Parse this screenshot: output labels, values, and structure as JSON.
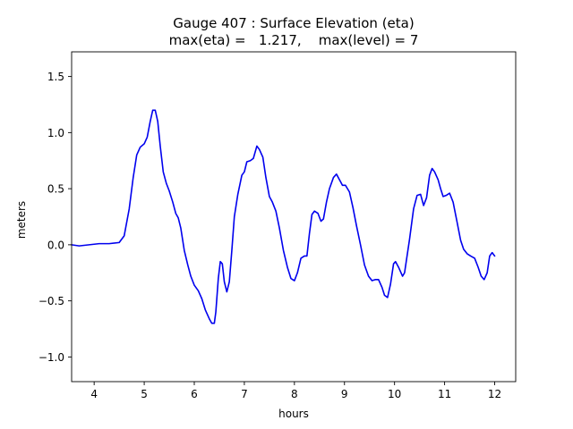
{
  "chart_data": {
    "type": "line",
    "title_line1": "Gauge 407 : Surface Elevation (eta)",
    "title_line2": "max(eta) =   1.217,    max(level) = 7",
    "xlabel": "hours",
    "ylabel": "meters",
    "xlim": [
      3.55,
      12.42
    ],
    "ylim": [
      -1.22,
      1.72
    ],
    "x_ticks": [
      4,
      5,
      6,
      7,
      8,
      9,
      10,
      11,
      12
    ],
    "x_tick_labels": [
      "4",
      "5",
      "6",
      "7",
      "8",
      "9",
      "10",
      "11",
      "12"
    ],
    "y_ticks": [
      -1.0,
      -0.5,
      0.0,
      0.5,
      1.0,
      1.5
    ],
    "y_tick_labels": [
      "−1.0",
      "−0.5",
      "0.0",
      "0.5",
      "1.0",
      "1.5"
    ],
    "grid": false,
    "series": [
      {
        "color": "#0000ee",
        "points": [
          [
            3.55,
            0.0
          ],
          [
            3.7,
            -0.01
          ],
          [
            3.9,
            0.0
          ],
          [
            4.1,
            0.01
          ],
          [
            4.3,
            0.01
          ],
          [
            4.5,
            0.02
          ],
          [
            4.6,
            0.08
          ],
          [
            4.7,
            0.32
          ],
          [
            4.78,
            0.6
          ],
          [
            4.85,
            0.8
          ],
          [
            4.92,
            0.87
          ],
          [
            5.0,
            0.9
          ],
          [
            5.06,
            0.96
          ],
          [
            5.12,
            1.1
          ],
          [
            5.17,
            1.2
          ],
          [
            5.22,
            1.2
          ],
          [
            5.27,
            1.1
          ],
          [
            5.32,
            0.88
          ],
          [
            5.38,
            0.65
          ],
          [
            5.44,
            0.55
          ],
          [
            5.5,
            0.48
          ],
          [
            5.57,
            0.38
          ],
          [
            5.63,
            0.28
          ],
          [
            5.68,
            0.24
          ],
          [
            5.73,
            0.15
          ],
          [
            5.8,
            -0.05
          ],
          [
            5.87,
            -0.18
          ],
          [
            5.93,
            -0.28
          ],
          [
            6.0,
            -0.36
          ],
          [
            6.08,
            -0.41
          ],
          [
            6.15,
            -0.48
          ],
          [
            6.22,
            -0.58
          ],
          [
            6.3,
            -0.66
          ],
          [
            6.35,
            -0.7
          ],
          [
            6.4,
            -0.7
          ],
          [
            6.43,
            -0.6
          ],
          [
            6.48,
            -0.3
          ],
          [
            6.52,
            -0.15
          ],
          [
            6.56,
            -0.17
          ],
          [
            6.6,
            -0.33
          ],
          [
            6.65,
            -0.42
          ],
          [
            6.7,
            -0.33
          ],
          [
            6.75,
            -0.05
          ],
          [
            6.8,
            0.25
          ],
          [
            6.87,
            0.45
          ],
          [
            6.95,
            0.62
          ],
          [
            7.0,
            0.65
          ],
          [
            7.05,
            0.74
          ],
          [
            7.12,
            0.75
          ],
          [
            7.18,
            0.77
          ],
          [
            7.25,
            0.88
          ],
          [
            7.3,
            0.85
          ],
          [
            7.37,
            0.78
          ],
          [
            7.43,
            0.6
          ],
          [
            7.5,
            0.43
          ],
          [
            7.56,
            0.38
          ],
          [
            7.63,
            0.3
          ],
          [
            7.7,
            0.15
          ],
          [
            7.78,
            -0.05
          ],
          [
            7.86,
            -0.2
          ],
          [
            7.93,
            -0.3
          ],
          [
            8.0,
            -0.32
          ],
          [
            8.06,
            -0.25
          ],
          [
            8.13,
            -0.12
          ],
          [
            8.2,
            -0.1
          ],
          [
            8.25,
            -0.1
          ],
          [
            8.3,
            0.1
          ],
          [
            8.35,
            0.27
          ],
          [
            8.4,
            0.3
          ],
          [
            8.47,
            0.28
          ],
          [
            8.53,
            0.21
          ],
          [
            8.58,
            0.23
          ],
          [
            8.64,
            0.38
          ],
          [
            8.7,
            0.5
          ],
          [
            8.78,
            0.6
          ],
          [
            8.84,
            0.63
          ],
          [
            8.9,
            0.58
          ],
          [
            8.96,
            0.53
          ],
          [
            9.02,
            0.53
          ],
          [
            9.1,
            0.47
          ],
          [
            9.17,
            0.33
          ],
          [
            9.24,
            0.17
          ],
          [
            9.32,
            0.0
          ],
          [
            9.4,
            -0.18
          ],
          [
            9.48,
            -0.28
          ],
          [
            9.55,
            -0.32
          ],
          [
            9.62,
            -0.31
          ],
          [
            9.68,
            -0.31
          ],
          [
            9.75,
            -0.38
          ],
          [
            9.8,
            -0.45
          ],
          [
            9.86,
            -0.47
          ],
          [
            9.92,
            -0.35
          ],
          [
            9.98,
            -0.17
          ],
          [
            10.02,
            -0.15
          ],
          [
            10.08,
            -0.2
          ],
          [
            10.16,
            -0.28
          ],
          [
            10.2,
            -0.25
          ],
          [
            10.3,
            0.05
          ],
          [
            10.38,
            0.32
          ],
          [
            10.45,
            0.44
          ],
          [
            10.52,
            0.45
          ],
          [
            10.58,
            0.35
          ],
          [
            10.64,
            0.42
          ],
          [
            10.7,
            0.62
          ],
          [
            10.75,
            0.68
          ],
          [
            10.8,
            0.65
          ],
          [
            10.87,
            0.58
          ],
          [
            10.92,
            0.5
          ],
          [
            10.97,
            0.43
          ],
          [
            11.03,
            0.44
          ],
          [
            11.1,
            0.46
          ],
          [
            11.17,
            0.38
          ],
          [
            11.25,
            0.2
          ],
          [
            11.32,
            0.04
          ],
          [
            11.38,
            -0.04
          ],
          [
            11.45,
            -0.08
          ],
          [
            11.52,
            -0.1
          ],
          [
            11.6,
            -0.12
          ],
          [
            11.67,
            -0.2
          ],
          [
            11.73,
            -0.28
          ],
          [
            11.79,
            -0.31
          ],
          [
            11.85,
            -0.25
          ],
          [
            11.9,
            -0.1
          ],
          [
            11.95,
            -0.07
          ],
          [
            12.0,
            -0.1
          ]
        ]
      }
    ]
  }
}
